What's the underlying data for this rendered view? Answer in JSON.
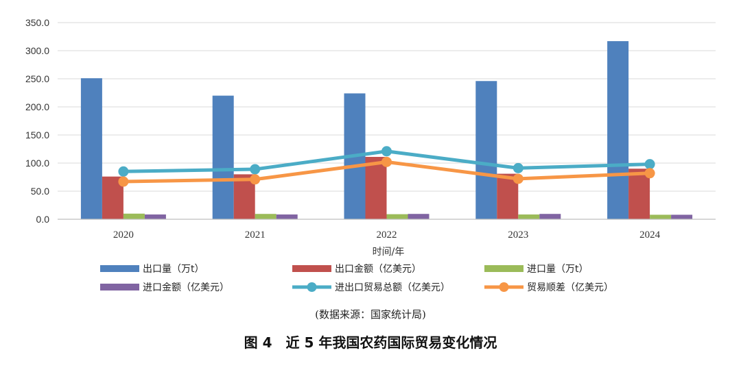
{
  "chart_data": {
    "type": "bar",
    "title": "",
    "xlabel": "时间/年",
    "ylabel": "",
    "ylim": [
      0,
      350
    ],
    "yticks": [
      "0.0",
      "50.0",
      "100.0",
      "150.0",
      "200.0",
      "250.0",
      "300.0",
      "350.0"
    ],
    "categories": [
      "2020",
      "2021",
      "2022",
      "2023",
      "2024"
    ],
    "series": [
      {
        "name": "出口量（万t）",
        "kind": "bar",
        "color": "#4f81bd",
        "values": [
          251,
          220,
          224,
          246,
          317
        ]
      },
      {
        "name": "出口金额（亿美元）",
        "kind": "bar",
        "color": "#c0504d",
        "values": [
          76,
          80,
          111,
          81,
          90
        ]
      },
      {
        "name": "进口量（万t）",
        "kind": "bar",
        "color": "#9bbb59",
        "values": [
          10,
          9.5,
          9,
          8.5,
          8
        ]
      },
      {
        "name": "进口金额（亿美元）",
        "kind": "bar",
        "color": "#8064a2",
        "values": [
          8.5,
          8.5,
          9.5,
          9.5,
          8
        ]
      },
      {
        "name": "进出口贸易总额（亿美元）",
        "kind": "line",
        "color": "#4bacc6",
        "values": [
          85,
          89,
          121,
          91,
          98
        ]
      },
      {
        "name": "贸易顺差（亿美元）",
        "kind": "line",
        "color": "#f79646",
        "values": [
          67,
          71,
          102,
          72,
          82
        ]
      }
    ]
  },
  "source_note": "(数据来源：国家统计局)",
  "caption": "图 4　近 5 年我国农药国际贸易变化情况"
}
